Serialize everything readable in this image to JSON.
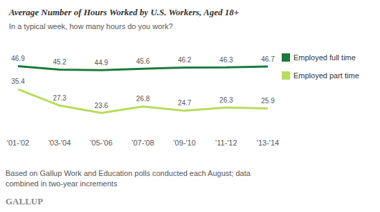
{
  "chart_data": {
    "type": "line",
    "title": "Average Number of Hours Worked by U.S. Workers, Aged 18+",
    "subtitle": "In a typical week, how many hours do you work?",
    "annotations": [
      "Based on Gallup Work and Education polls conducted each August; data combined in two-year increments",
      "GALLUP"
    ],
    "categories": [
      "'01-'02",
      "'03-'04",
      "'05-'06",
      "'07-'08",
      "'09-'10",
      "'11-'12",
      "'13-'14"
    ],
    "series": [
      {
        "name": "Employed full time",
        "color": "#1a7a3c",
        "values": [
          46.9,
          45.2,
          44.9,
          45.6,
          46.2,
          46.3,
          46.7
        ]
      },
      {
        "name": "Employed part time",
        "color": "#b6dd5c",
        "values": [
          35.4,
          27.3,
          23.6,
          26.8,
          24.7,
          26.3,
          25.9
        ]
      }
    ],
    "ylim": [
      15,
      55
    ],
    "grid": false,
    "legend": "right",
    "data_labels": true,
    "tick_labels": "x"
  }
}
